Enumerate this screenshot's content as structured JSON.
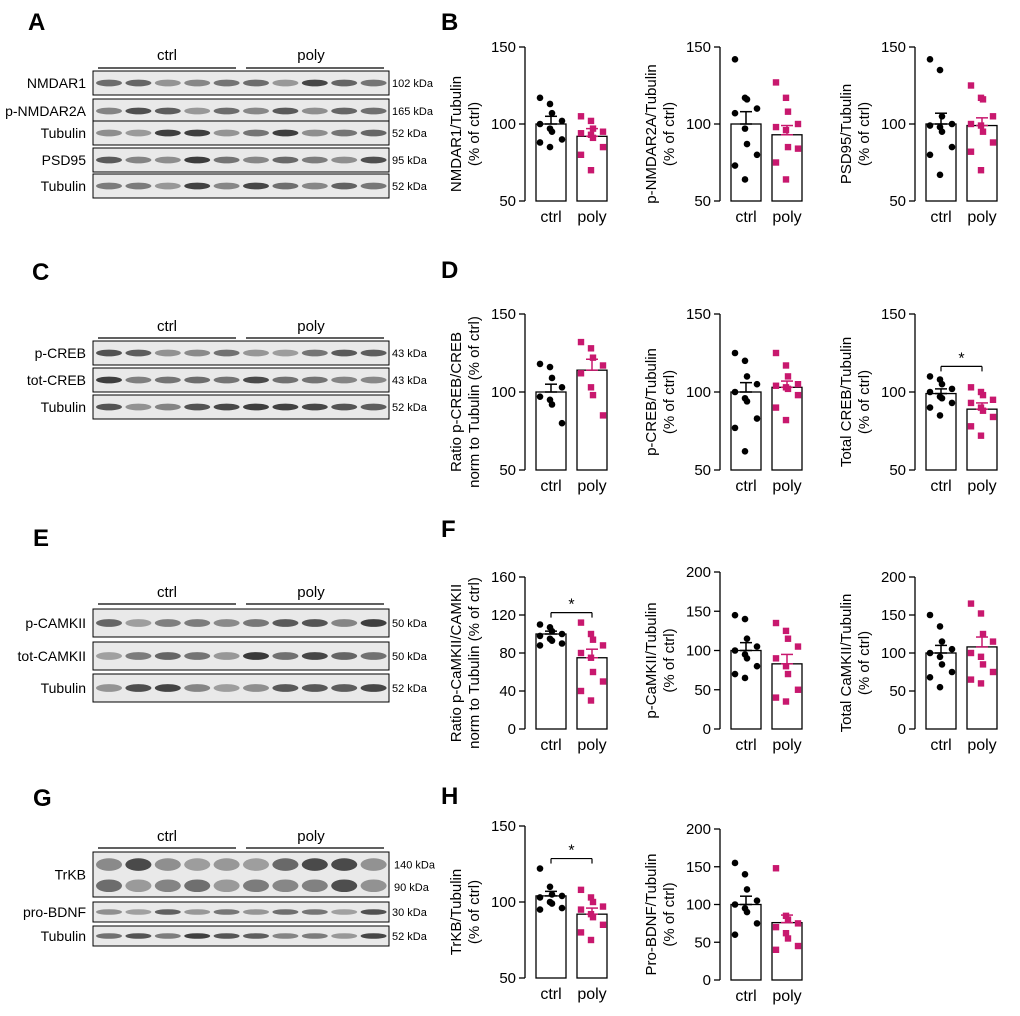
{
  "panel_letters": {
    "A": "A",
    "B": "B",
    "C": "C",
    "D": "D",
    "E": "E",
    "F": "F",
    "G": "G",
    "H": "H"
  },
  "colors": {
    "ctrl": "#000000",
    "poly": "#c8186e"
  },
  "blots": [
    {
      "panel": "A",
      "group_labels": [
        "ctrl",
        "poly"
      ],
      "rows": [
        {
          "label": "NMDAR1",
          "kda": "102 kDa"
        },
        {
          "label": "p-NMDAR2A",
          "kda": "165 kDa"
        },
        {
          "label": "Tubulin",
          "kda": "52 kDa"
        },
        {
          "label": "PSD95",
          "kda": "95 kDa"
        },
        {
          "label": "Tubulin",
          "kda": "52 kDa"
        }
      ]
    },
    {
      "panel": "C",
      "group_labels": [
        "ctrl",
        "poly"
      ],
      "rows": [
        {
          "label": "p-CREB",
          "kda": "43 kDa"
        },
        {
          "label": "tot-CREB",
          "kda": "43 kDa"
        },
        {
          "label": "Tubulin",
          "kda": "52 kDa"
        }
      ]
    },
    {
      "panel": "E",
      "group_labels": [
        "ctrl",
        "poly"
      ],
      "rows": [
        {
          "label": "p-CAMKII",
          "kda": "50 kDa"
        },
        {
          "label": "tot-CAMKII",
          "kda": "50 kDa"
        },
        {
          "label": "Tubulin",
          "kda": "52 kDa"
        }
      ]
    },
    {
      "panel": "G",
      "group_labels": [
        "ctrl",
        "poly"
      ],
      "rows": [
        {
          "label": "TrKB",
          "kda": "140 kDa",
          "kda2": "90 kDa"
        },
        {
          "label": "pro-BDNF",
          "kda": "30 kDa"
        },
        {
          "label": "Tubulin",
          "kda": "52 kDa"
        }
      ]
    }
  ],
  "chart_data": [
    {
      "panel": "B",
      "type": "bar",
      "ylabel": [
        "NMDAR1/Tubulin",
        "(% of ctrl)"
      ],
      "categories": [
        "ctrl",
        "poly"
      ],
      "ylim": [
        50,
        150
      ],
      "yticks": [
        50,
        100,
        150
      ],
      "means": [
        100,
        92
      ],
      "sem": [
        5,
        5
      ],
      "points": [
        [
          117,
          113,
          107,
          102,
          100,
          97,
          95,
          90,
          88,
          85
        ],
        [
          105,
          102,
          97,
          95,
          94,
          93,
          91,
          85,
          80,
          70
        ]
      ],
      "significance": ""
    },
    {
      "panel": "B",
      "type": "bar",
      "ylabel": [
        "p-NMDAR2A/Tubulin",
        "(% of ctrl)"
      ],
      "categories": [
        "ctrl",
        "poly"
      ],
      "ylim": [
        50,
        150
      ],
      "yticks": [
        50,
        100,
        150
      ],
      "means": [
        100,
        93
      ],
      "sem": [
        8,
        6
      ],
      "points": [
        [
          142,
          117,
          116,
          110,
          107,
          97,
          87,
          80,
          73,
          64
        ],
        [
          127,
          117,
          108,
          100,
          98,
          96,
          85,
          84,
          75,
          64
        ]
      ],
      "significance": ""
    },
    {
      "panel": "B",
      "type": "bar",
      "ylabel": [
        "PSD95/Tubulin",
        "(% of ctrl)"
      ],
      "categories": [
        "ctrl",
        "poly"
      ],
      "ylim": [
        50,
        150
      ],
      "yticks": [
        50,
        100,
        150
      ],
      "means": [
        100,
        99
      ],
      "sem": [
        7,
        5
      ],
      "points": [
        [
          142,
          135,
          105,
          100,
          99,
          98,
          95,
          85,
          80,
          67
        ],
        [
          125,
          117,
          116,
          105,
          100,
          99,
          95,
          88,
          82,
          70
        ]
      ],
      "significance": ""
    },
    {
      "panel": "D",
      "type": "bar",
      "ylabel": [
        "Ratio p-CREB/CREB",
        "norm to Tubulin (% of ctrl)"
      ],
      "categories": [
        "ctrl",
        "poly"
      ],
      "ylim": [
        50,
        150
      ],
      "yticks": [
        50,
        100,
        150
      ],
      "means": [
        100,
        114
      ],
      "sem": [
        5,
        7
      ],
      "points": [
        [
          118,
          116,
          109,
          103,
          97,
          95,
          92,
          80
        ],
        [
          132,
          128,
          122,
          117,
          112,
          103,
          98,
          85
        ]
      ],
      "significance": ""
    },
    {
      "panel": "D",
      "type": "bar",
      "ylabel": [
        "p-CREB/Tubulin",
        "(% of ctrl)"
      ],
      "categories": [
        "ctrl",
        "poly"
      ],
      "ylim": [
        50,
        150
      ],
      "yticks": [
        50,
        100,
        150
      ],
      "means": [
        100,
        103
      ],
      "sem": [
        6,
        4
      ],
      "points": [
        [
          125,
          120,
          110,
          105,
          100,
          96,
          94,
          83,
          77,
          62
        ],
        [
          125,
          117,
          110,
          105,
          104,
          103,
          102,
          98,
          90,
          82
        ]
      ],
      "significance": ""
    },
    {
      "panel": "D",
      "type": "bar",
      "ylabel": [
        "Total CREB/Tubulin",
        "(% of ctrl)"
      ],
      "categories": [
        "ctrl",
        "poly"
      ],
      "ylim": [
        50,
        150
      ],
      "yticks": [
        50,
        100,
        150
      ],
      "means": [
        99,
        89
      ],
      "sem": [
        3,
        4
      ],
      "points": [
        [
          110,
          108,
          105,
          102,
          100,
          97,
          96,
          93,
          90,
          85
        ],
        [
          103,
          100,
          98,
          95,
          93,
          90,
          88,
          84,
          78,
          72
        ]
      ],
      "significance": "*"
    },
    {
      "panel": "F",
      "type": "bar",
      "ylabel": [
        "Ratio p-CaMKII/CAMKII",
        "norm to Tubulin (% of ctrl)"
      ],
      "categories": [
        "ctrl",
        "poly"
      ],
      "ylim": [
        0,
        160
      ],
      "yticks": [
        0,
        40,
        80,
        120,
        160
      ],
      "means": [
        100,
        75
      ],
      "sem": [
        3,
        9
      ],
      "points": [
        [
          110,
          107,
          103,
          100,
          98,
          95,
          93,
          90,
          88
        ],
        [
          112,
          100,
          94,
          88,
          80,
          75,
          60,
          50,
          40,
          30
        ]
      ],
      "significance": "*"
    },
    {
      "panel": "F",
      "type": "bar",
      "ylabel": [
        "p-CaMKII/Tubulin",
        "(% of ctrl)"
      ],
      "categories": [
        "ctrl",
        "poly"
      ],
      "ylim": [
        0,
        200
      ],
      "yticks": [
        0,
        50,
        100,
        150,
        200
      ],
      "means": [
        100,
        83
      ],
      "sem": [
        10,
        12
      ],
      "points": [
        [
          145,
          140,
          115,
          105,
          100,
          95,
          90,
          80,
          70,
          65
        ],
        [
          135,
          125,
          115,
          105,
          90,
          80,
          70,
          50,
          40,
          35
        ]
      ],
      "significance": ""
    },
    {
      "panel": "F",
      "type": "bar",
      "ylabel": [
        "Total CaMKII/Tubulin",
        "(% of ctrl)"
      ],
      "categories": [
        "ctrl",
        "poly"
      ],
      "ylim": [
        0,
        200
      ],
      "yticks": [
        0,
        50,
        100,
        150,
        200
      ],
      "means": [
        100,
        108
      ],
      "sem": [
        10,
        13
      ],
      "points": [
        [
          150,
          135,
          115,
          105,
          100,
          95,
          85,
          75,
          68,
          55
        ],
        [
          165,
          152,
          125,
          115,
          100,
          95,
          85,
          75,
          65,
          60
        ]
      ],
      "significance": ""
    },
    {
      "panel": "H",
      "type": "bar",
      "ylabel": [
        "TrKB/Tubulin",
        "(% of ctrl)"
      ],
      "categories": [
        "ctrl",
        "poly"
      ],
      "ylim": [
        50,
        150
      ],
      "yticks": [
        50,
        100,
        150
      ],
      "means": [
        104,
        92
      ],
      "sem": [
        3,
        4
      ],
      "points": [
        [
          122,
          110,
          105,
          104,
          103,
          100,
          99,
          96,
          95
        ],
        [
          108,
          103,
          100,
          97,
          95,
          92,
          90,
          85,
          80,
          75
        ]
      ],
      "significance": "*"
    },
    {
      "panel": "H",
      "type": "bar",
      "ylabel": [
        "Pro-BDNF/Tubulin",
        "(% of ctrl)"
      ],
      "categories": [
        "ctrl",
        "poly"
      ],
      "ylim": [
        0,
        200
      ],
      "yticks": [
        0,
        50,
        100,
        150,
        200
      ],
      "means": [
        100,
        76
      ],
      "sem": [
        11,
        10
      ],
      "points": [
        [
          155,
          140,
          120,
          105,
          100,
          95,
          90,
          75,
          60
        ],
        [
          148,
          85,
          80,
          75,
          70,
          62,
          55,
          45,
          40
        ]
      ],
      "significance": ""
    }
  ]
}
